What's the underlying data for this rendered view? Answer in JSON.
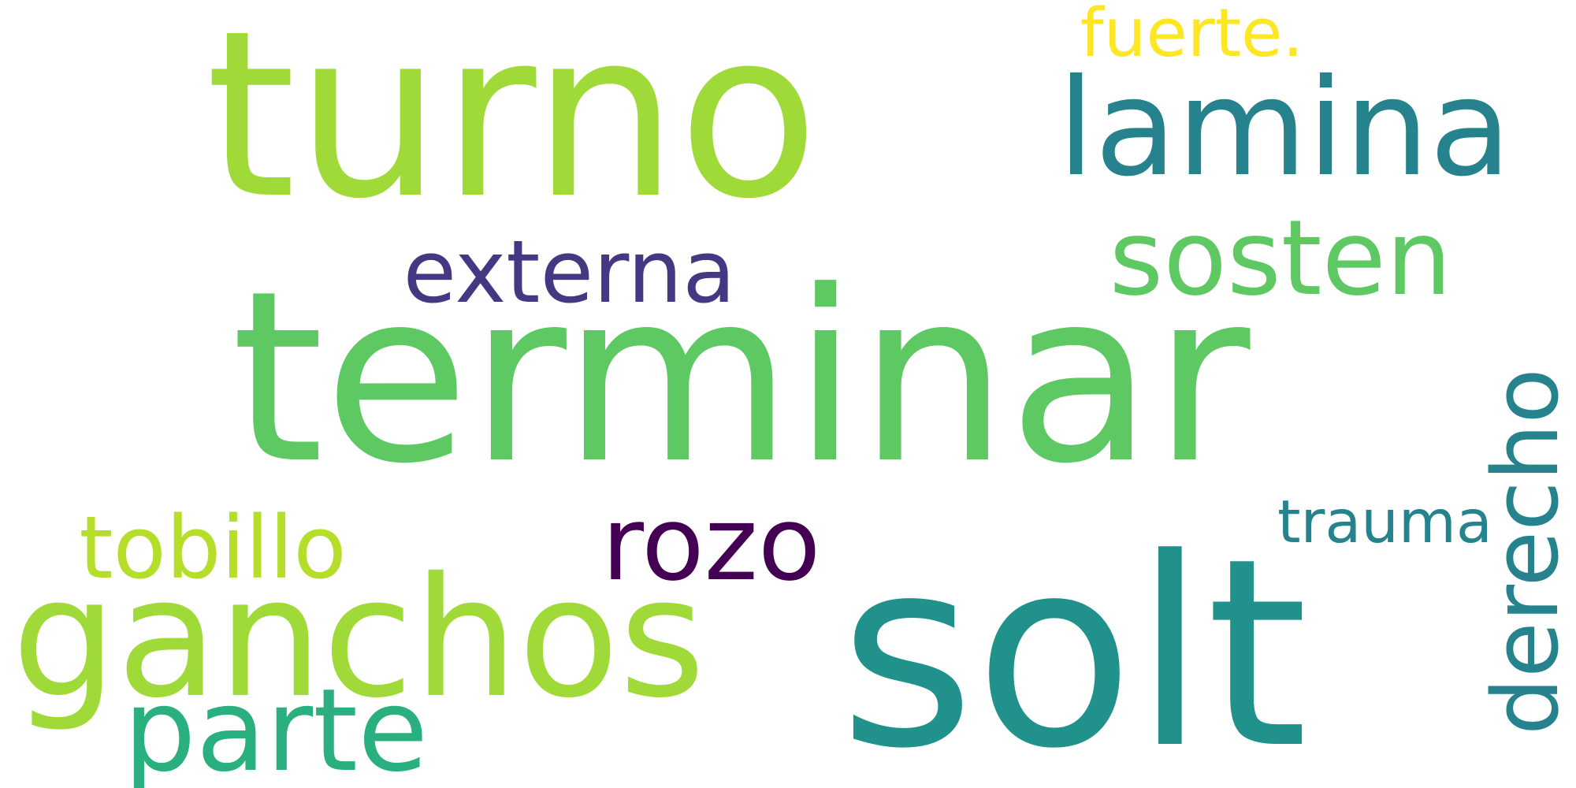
{
  "words": [
    {
      "text": "terminar",
      "color": "#5ec962",
      "orientation": "horizontal"
    },
    {
      "text": "turno",
      "color": "#a0da39",
      "orientation": "horizontal"
    },
    {
      "text": "solt",
      "color": "#21918c",
      "orientation": "horizontal"
    },
    {
      "text": "lamina",
      "color": "#26838e",
      "orientation": "horizontal"
    },
    {
      "text": "sosten",
      "color": "#5ec962",
      "orientation": "horizontal"
    },
    {
      "text": "ganchos",
      "color": "#a0da39",
      "orientation": "horizontal"
    },
    {
      "text": "rozo",
      "color": "#440154",
      "orientation": "horizontal"
    },
    {
      "text": "derecho",
      "color": "#26838e",
      "orientation": "vertical"
    },
    {
      "text": "externa",
      "color": "#453781",
      "orientation": "horizontal"
    },
    {
      "text": "tobillo",
      "color": "#b5de2b",
      "orientation": "horizontal"
    },
    {
      "text": "parte",
      "color": "#2ab07f",
      "orientation": "horizontal"
    },
    {
      "text": "trauma",
      "color": "#26838e",
      "orientation": "horizontal"
    },
    {
      "text": "fuerte.",
      "color": "#fde725",
      "orientation": "horizontal"
    }
  ]
}
